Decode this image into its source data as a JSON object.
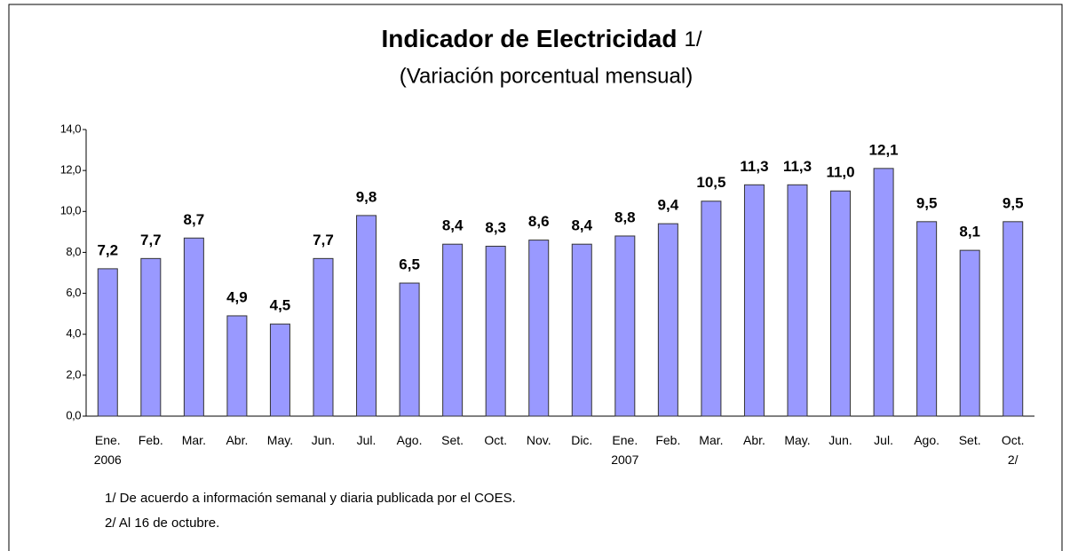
{
  "chart_data": {
    "type": "bar",
    "title": "Indicador de Electricidad",
    "title_note": "1/",
    "subtitle": "(Variación porcentual mensual)",
    "categories": [
      "Ene.\n2006",
      "Feb.",
      "Mar.",
      "Abr.",
      "May.",
      "Jun.",
      "Jul.",
      "Ago.",
      "Set.",
      "Oct.",
      "Nov.",
      "Dic.",
      "Ene.\n2007",
      "Feb.",
      "Mar.",
      "Abr.",
      "May.",
      "Jun.",
      "Jul.",
      "Ago.",
      "Set.",
      "Oct.\n2/"
    ],
    "values": [
      7.2,
      7.7,
      8.7,
      4.9,
      4.5,
      7.7,
      9.8,
      6.5,
      8.4,
      8.3,
      8.6,
      8.4,
      8.8,
      9.4,
      10.5,
      11.3,
      11.3,
      11.0,
      12.1,
      9.5,
      8.1,
      9.5
    ],
    "value_labels": [
      "7,2",
      "7,7",
      "8,7",
      "4,9",
      "4,5",
      "7,7",
      "9,8",
      "6,5",
      "8,4",
      "8,3",
      "8,6",
      "8,4",
      "8,8",
      "9,4",
      "10,5",
      "11,3",
      "11,3",
      "11,0",
      "12,1",
      "9,5",
      "8,1",
      "9,5"
    ],
    "color": "#9999ff",
    "ylim": [
      0,
      14
    ],
    "yticks": [
      {
        "value": 0,
        "label": "0,0"
      },
      {
        "value": 2,
        "label": "2,0"
      },
      {
        "value": 4,
        "label": "4,0"
      },
      {
        "value": 6,
        "label": "6,0"
      },
      {
        "value": 8,
        "label": "8,0"
      },
      {
        "value": 10,
        "label": "10,0"
      },
      {
        "value": 12,
        "label": "12,0"
      },
      {
        "value": 14,
        "label": "14,0"
      }
    ],
    "grid": false,
    "footnotes": [
      "1/ De acuerdo a información semanal y diaria publicada por el COES.",
      "2/ Al 16 de octubre."
    ]
  }
}
